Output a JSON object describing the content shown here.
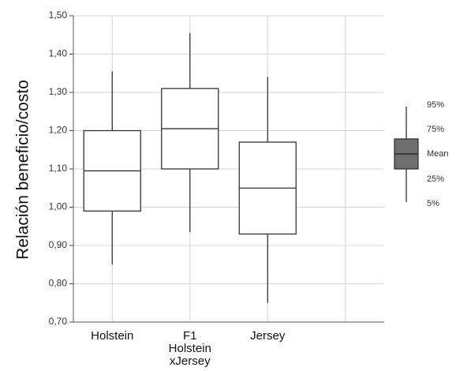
{
  "chart_data": {
    "type": "box",
    "ylabel": "Relación beneficio/costo",
    "ylim": [
      0.7,
      1.5
    ],
    "yticks": [
      "0,70",
      "0,80",
      "0,90",
      "1,00",
      "1,10",
      "1,20",
      "1,30",
      "1,40",
      "1,50"
    ],
    "grid": true,
    "categories": [
      {
        "label_lines": [
          "Holstein"
        ],
        "p5": 0.85,
        "p25": 0.99,
        "mean": 1.095,
        "p75": 1.2,
        "p95": 1.355
      },
      {
        "label_lines": [
          "F1",
          "Holstein",
          "xJersey"
        ],
        "p5": 0.935,
        "p25": 1.1,
        "mean": 1.205,
        "p75": 1.31,
        "p95": 1.455
      },
      {
        "label_lines": [
          "Jersey"
        ],
        "p5": 0.75,
        "p25": 0.93,
        "mean": 1.05,
        "p75": 1.17,
        "p95": 1.34
      },
      {
        "label_lines": [],
        "empty": true
      }
    ],
    "legend": {
      "placement": "right",
      "entries": [
        "95%",
        "75%",
        "Mean",
        "25%",
        "5%"
      ]
    },
    "colors": {
      "grid": "#d4d4d4",
      "box_fill": "#ffffff",
      "box_stroke": "#333333",
      "legend_fill": "#6e6e6e"
    }
  }
}
